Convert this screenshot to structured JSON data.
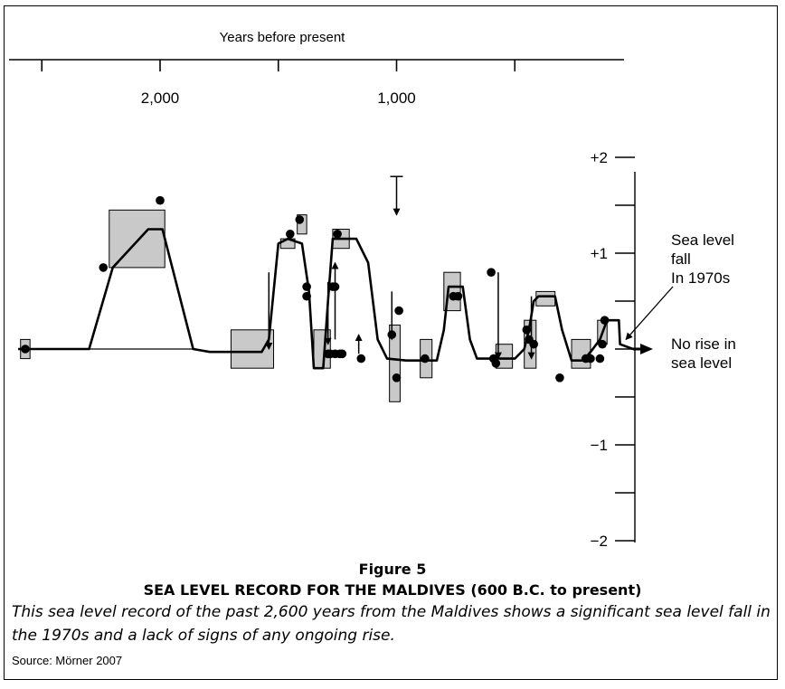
{
  "figure": {
    "number": "Figure 5",
    "title": "SEA LEVEL RECORD FOR THE MALDIVES (600 B.C. to present)",
    "caption": "This sea level record of the past 2,600 years from the Maldives shows a significant sea level fall in the 1970s and a lack of signs of any ongoing rise.",
    "source": "Source: Mörner 2007"
  },
  "chart_data": {
    "type": "line",
    "xlabel": "Years before present",
    "ylabel": "",
    "x_reversed": true,
    "xlim": [
      2600,
      0
    ],
    "ylim": [
      -2.1,
      2.6
    ],
    "x_ticks": [
      2500,
      2000,
      1500,
      1000,
      500
    ],
    "x_tick_labels": [
      {
        "x": 2000,
        "label": "2,000"
      },
      {
        "x": 1000,
        "label": "1,000"
      }
    ],
    "y_ticks": [
      -2,
      -1.5,
      -1,
      -0.5,
      0,
      0.5,
      1,
      1.5,
      2
    ],
    "y_tick_labels": [
      {
        "y": 2,
        "label": "+2"
      },
      {
        "y": 1,
        "label": "+1"
      },
      {
        "y": -1,
        "label": "−1"
      },
      {
        "y": -2,
        "label": "−2"
      }
    ],
    "curve": [
      [
        2600,
        0
      ],
      [
        2300,
        0
      ],
      [
        2200,
        0.85
      ],
      [
        2050,
        1.25
      ],
      [
        1990,
        1.25
      ],
      [
        1860,
        0
      ],
      [
        1790,
        -0.03
      ],
      [
        1700,
        -0.03
      ],
      [
        1570,
        -0.03
      ],
      [
        1540,
        0.1
      ],
      [
        1500,
        1.1
      ],
      [
        1460,
        1.15
      ],
      [
        1400,
        1.1
      ],
      [
        1370,
        0.6
      ],
      [
        1350,
        -0.2
      ],
      [
        1310,
        -0.2
      ],
      [
        1290,
        0.5
      ],
      [
        1270,
        1.15
      ],
      [
        1170,
        1.15
      ],
      [
        1120,
        0.9
      ],
      [
        1080,
        0.1
      ],
      [
        1040,
        -0.1
      ],
      [
        960,
        -0.12
      ],
      [
        830,
        -0.12
      ],
      [
        800,
        0.2
      ],
      [
        780,
        0.65
      ],
      [
        720,
        0.65
      ],
      [
        690,
        0.1
      ],
      [
        660,
        -0.1
      ],
      [
        500,
        -0.1
      ],
      [
        460,
        0
      ],
      [
        440,
        0.2
      ],
      [
        420,
        0.5
      ],
      [
        400,
        0.55
      ],
      [
        330,
        0.55
      ],
      [
        300,
        0.2
      ],
      [
        260,
        -0.12
      ],
      [
        210,
        -0.12
      ],
      [
        170,
        0
      ],
      [
        140,
        0.1
      ],
      [
        110,
        0.3
      ],
      [
        60,
        0.3
      ],
      [
        55,
        0.05
      ],
      [
        0,
        0
      ]
    ],
    "lower_bound_line": [
      [
        2300,
        0
      ],
      [
        1850,
        0
      ]
    ],
    "boxes": [
      {
        "x": [
          2590,
          2550
        ],
        "y": [
          -0.1,
          0.1
        ]
      },
      {
        "x": [
          2215,
          1980
        ],
        "y": [
          0.85,
          1.45
        ]
      },
      {
        "x": [
          1700,
          1520
        ],
        "y": [
          -0.2,
          0.2
        ]
      },
      {
        "x": [
          1490,
          1430
        ],
        "y": [
          1.05,
          1.15
        ]
      },
      {
        "x": [
          1420,
          1380
        ],
        "y": [
          1.2,
          1.4
        ]
      },
      {
        "x": [
          1350,
          1280
        ],
        "y": [
          -0.2,
          0.2
        ]
      },
      {
        "x": [
          1270,
          1200
        ],
        "y": [
          1.05,
          1.25
        ]
      },
      {
        "x": [
          1030,
          985
        ],
        "y": [
          -0.55,
          0.25
        ]
      },
      {
        "x": [
          900,
          850
        ],
        "y": [
          -0.3,
          0.1
        ]
      },
      {
        "x": [
          800,
          730
        ],
        "y": [
          0.4,
          0.8
        ]
      },
      {
        "x": [
          580,
          510
        ],
        "y": [
          -0.2,
          0.05
        ]
      },
      {
        "x": [
          460,
          410
        ],
        "y": [
          -0.2,
          0.3
        ]
      },
      {
        "x": [
          410,
          330
        ],
        "y": [
          0.45,
          0.6
        ]
      },
      {
        "x": [
          260,
          180
        ],
        "y": [
          -0.2,
          0.1
        ]
      },
      {
        "x": [
          150,
          110
        ],
        "y": [
          0.05,
          0.3
        ]
      }
    ],
    "points": [
      [
        2570,
        0
      ],
      [
        2240,
        0.85
      ],
      [
        2000,
        1.55
      ],
      [
        1380,
        0.55
      ],
      [
        1450,
        1.2
      ],
      [
        1410,
        1.35
      ],
      [
        1380,
        0.65
      ],
      [
        1260,
        0.65
      ],
      [
        1270,
        0.65
      ],
      [
        1250,
        1.2
      ],
      [
        1240,
        -0.05
      ],
      [
        1260,
        -0.05
      ],
      [
        1280,
        -0.05
      ],
      [
        1290,
        -0.05
      ],
      [
        1230,
        -0.05
      ],
      [
        1150,
        -0.1
      ],
      [
        1000,
        -0.3
      ],
      [
        990,
        0.4
      ],
      [
        1020,
        0.15
      ],
      [
        880,
        -0.1
      ],
      [
        760,
        0.55
      ],
      [
        740,
        0.55
      ],
      [
        600,
        0.8
      ],
      [
        580,
        -0.15
      ],
      [
        590,
        -0.1
      ],
      [
        450,
        0.2
      ],
      [
        440,
        0.1
      ],
      [
        420,
        0.05
      ],
      [
        310,
        -0.3
      ],
      [
        200,
        -0.1
      ],
      [
        180,
        -0.1
      ],
      [
        140,
        -0.1
      ],
      [
        130,
        0.05
      ],
      [
        120,
        0.3
      ]
    ],
    "range_arrows": [
      [
        1540,
        0.8,
        0.0
      ],
      [
        1540,
        0.4,
        0.0
      ],
      [
        1260,
        0.1,
        0.9
      ],
      [
        1290,
        0.7,
        0.05
      ],
      [
        1160,
        -0.05,
        0.15
      ],
      [
        1000,
        1.8,
        1.4
      ],
      [
        1020,
        0.6,
        0.1
      ],
      [
        570,
        0.8,
        -0.1
      ],
      [
        430,
        0.55,
        -0.1
      ]
    ],
    "annotations": [
      {
        "text": [
          "Sea level",
          "fall",
          "In 1970s"
        ],
        "points_to": [
          30,
          0.1
        ]
      },
      {
        "text": [
          "No rise in",
          "sea level"
        ],
        "points_to": [
          0,
          0
        ]
      }
    ]
  }
}
